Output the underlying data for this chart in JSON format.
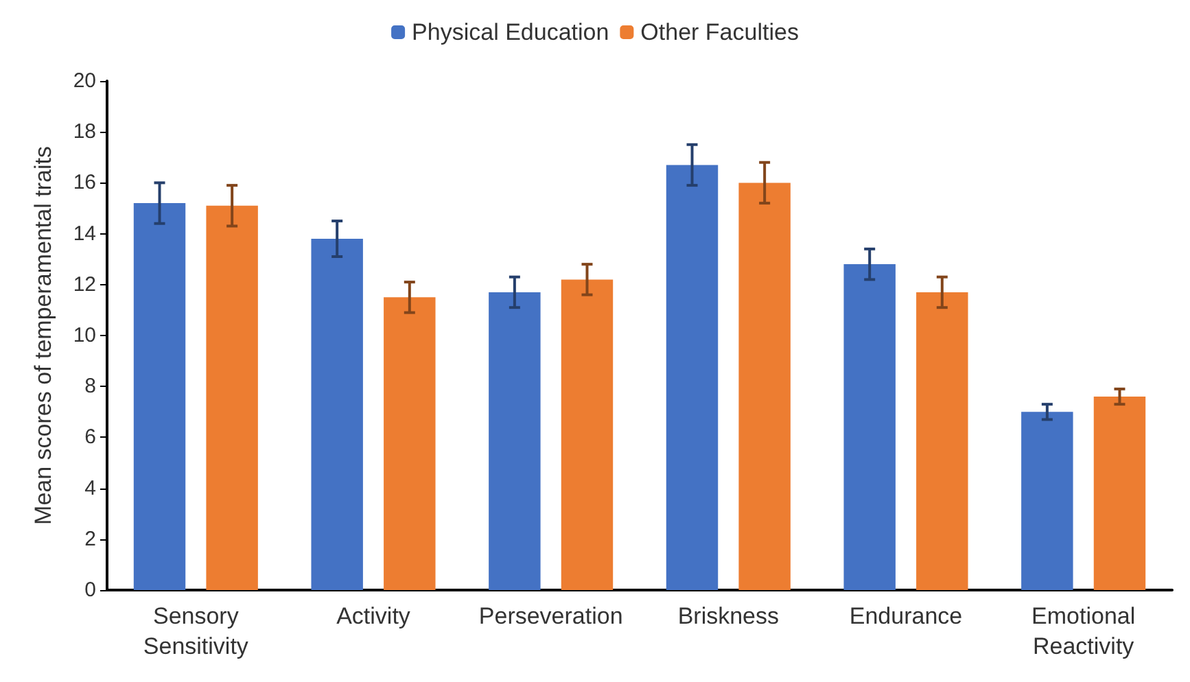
{
  "chart_data": {
    "type": "bar",
    "ylabel": "Mean scores of temperamental traits",
    "categories": [
      "Sensory\nSensitivity",
      "Activity",
      "Perseveration",
      "Briskness",
      "Endurance",
      "Emotional\nReactivity"
    ],
    "series": [
      {
        "name": "Physical Education",
        "color": "#4472c4",
        "values": [
          15.2,
          13.8,
          11.7,
          16.7,
          12.8,
          7.0
        ],
        "errors": [
          0.8,
          0.7,
          0.6,
          0.8,
          0.6,
          0.3
        ]
      },
      {
        "name": "Other Faculties",
        "color": "#ed7d31",
        "values": [
          15.1,
          11.5,
          12.2,
          16.0,
          11.7,
          7.6
        ],
        "errors": [
          0.8,
          0.6,
          0.6,
          0.8,
          0.6,
          0.3
        ]
      }
    ],
    "ylim": [
      0,
      20
    ],
    "yticks": [
      0,
      2,
      4,
      6,
      8,
      10,
      12,
      14,
      16,
      18,
      20
    ],
    "grid": false,
    "legend": "top"
  }
}
